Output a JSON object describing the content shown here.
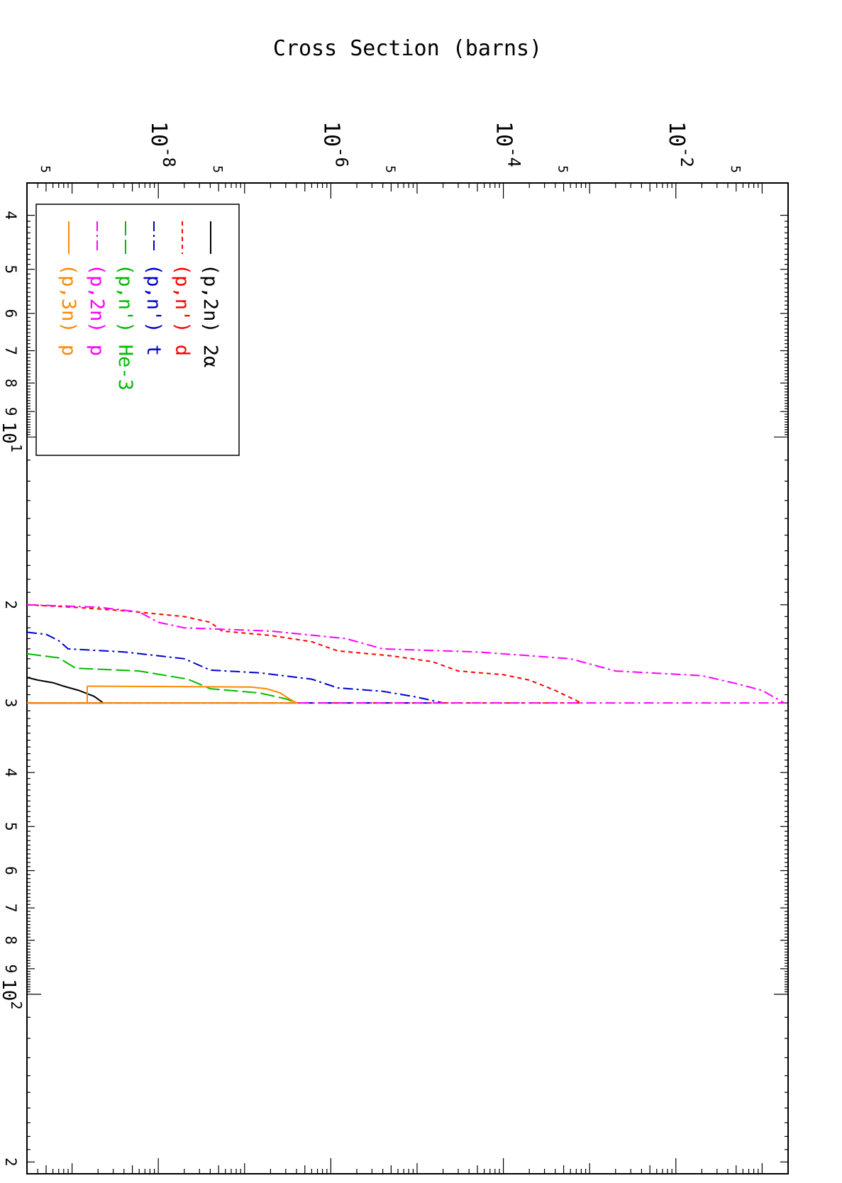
{
  "chart_data": {
    "type": "line",
    "title": "",
    "ylabel": "Cross Section (barns)",
    "xlabel": "",
    "x_scale": "log",
    "y_scale": "log",
    "xlim": [
      3.5,
      210
    ],
    "ylim": [
      3e-10,
      0.2
    ],
    "x_ticks": [
      {
        "value": 4,
        "label": "4"
      },
      {
        "value": 5,
        "label": "5"
      },
      {
        "value": 6,
        "label": "6"
      },
      {
        "value": 7,
        "label": "7"
      },
      {
        "value": 8,
        "label": "8"
      },
      {
        "value": 9,
        "label": "9"
      },
      {
        "value": 10,
        "label": "10",
        "sup": "1"
      },
      {
        "value": 20,
        "label": "2"
      },
      {
        "value": 30,
        "label": "3"
      },
      {
        "value": 40,
        "label": "4"
      },
      {
        "value": 50,
        "label": "5"
      },
      {
        "value": 60,
        "label": "6"
      },
      {
        "value": 70,
        "label": "7"
      },
      {
        "value": 80,
        "label": "8"
      },
      {
        "value": 90,
        "label": "9"
      },
      {
        "value": 100,
        "label": "10",
        "sup": "2"
      },
      {
        "value": 200,
        "label": "2"
      }
    ],
    "y_ticks": [
      {
        "value": 0.05,
        "label": "5"
      },
      {
        "value": 0.01,
        "label": "10",
        "sup": "-2"
      },
      {
        "value": 0.0005,
        "label": "5"
      },
      {
        "value": 0.0001,
        "label": "10",
        "sup": "-4"
      },
      {
        "value": 5e-06,
        "label": "5"
      },
      {
        "value": 1e-06,
        "label": "10",
        "sup": "-6"
      },
      {
        "value": 5e-08,
        "label": "5"
      },
      {
        "value": 1e-08,
        "label": "10",
        "sup": "-8"
      },
      {
        "value": 5e-10,
        "label": "5"
      }
    ],
    "legend_position": "bottom-left",
    "series": [
      {
        "name": "(p,2n) 2α",
        "color": "#000000",
        "dash": "",
        "points": [
          [
            27.0,
            3e-10
          ],
          [
            27.3,
            4e-10
          ],
          [
            27.6,
            6e-10
          ],
          [
            28.0,
            8e-10
          ],
          [
            28.5,
            1.2e-09
          ],
          [
            29.2,
            1.8e-09
          ],
          [
            30.0,
            2.3e-09
          ],
          [
            30.0,
            3e-10
          ]
        ]
      },
      {
        "name": "(p,n') d",
        "color": "#ff0000",
        "dash": "6,5",
        "points": [
          [
            20.0,
            3e-10
          ],
          [
            20.2,
            1e-09
          ],
          [
            20.5,
            4e-09
          ],
          [
            21.0,
            2e-08
          ],
          [
            21.5,
            4e-08
          ],
          [
            22.3,
            5.5e-08
          ],
          [
            22.7,
            2e-07
          ],
          [
            23.3,
            6e-07
          ],
          [
            24.2,
            1.2e-06
          ],
          [
            24.7,
            5e-06
          ],
          [
            25.3,
            1.5e-05
          ],
          [
            26.3,
            3e-05
          ],
          [
            26.7,
            0.0001
          ],
          [
            27.3,
            0.0002
          ],
          [
            28.5,
            0.0004
          ],
          [
            30.0,
            0.0008
          ],
          [
            30.0,
            3e-10
          ]
        ]
      },
      {
        "name": "(p,n') t",
        "color": "#0000cc",
        "dash": "14,5,3,5",
        "points": [
          [
            22.4,
            3e-10
          ],
          [
            22.6,
            5e-10
          ],
          [
            23.2,
            7e-10
          ],
          [
            24.0,
            9e-10
          ],
          [
            24.3,
            4e-09
          ],
          [
            25.0,
            2e-08
          ],
          [
            26.2,
            4e-08
          ],
          [
            26.5,
            1.5e-07
          ],
          [
            27.2,
            6e-07
          ],
          [
            28.2,
            1.2e-06
          ],
          [
            28.6,
            4e-06
          ],
          [
            29.3,
            1e-05
          ],
          [
            30.0,
            2e-05
          ],
          [
            30.0,
            3e-10
          ]
        ]
      },
      {
        "name": "(p,n') He-3",
        "color": "#00bb00",
        "dash": "20,6",
        "points": [
          [
            24.5,
            3e-10
          ],
          [
            24.9,
            7e-10
          ],
          [
            26.0,
            1.1e-09
          ],
          [
            26.3,
            6e-09
          ],
          [
            27.2,
            2.2e-08
          ],
          [
            28.3,
            4e-08
          ],
          [
            28.8,
            1.5e-07
          ],
          [
            29.5,
            3e-07
          ],
          [
            30.0,
            4e-07
          ],
          [
            30.0,
            3e-10
          ]
        ]
      },
      {
        "name": "(p,2n) p",
        "color": "#ff00ff",
        "dash": "14,5,3,5",
        "points": [
          [
            20.0,
            3e-10
          ],
          [
            20.2,
            2e-09
          ],
          [
            20.6,
            6e-09
          ],
          [
            21.5,
            1e-08
          ],
          [
            22.0,
            2e-08
          ],
          [
            22.3,
            2e-07
          ],
          [
            23.0,
            1.5e-06
          ],
          [
            24.0,
            4e-06
          ],
          [
            24.3,
            5e-05
          ],
          [
            25.0,
            0.0006
          ],
          [
            26.3,
            0.002
          ],
          [
            26.8,
            0.02
          ],
          [
            27.7,
            0.05
          ],
          [
            28.5,
            0.1
          ],
          [
            30.0,
            0.18
          ],
          [
            30.0,
            3e-10
          ]
        ]
      },
      {
        "name": "(p,3n) p",
        "color": "#ff8800",
        "dash": "",
        "points": [
          [
            28.0,
            1.5e-09
          ],
          [
            28.1,
            1.2e-07
          ],
          [
            28.3,
            1.8e-07
          ],
          [
            28.8,
            2.6e-07
          ],
          [
            29.5,
            3.3e-07
          ],
          [
            30.0,
            4e-07
          ],
          [
            30.0,
            3e-10
          ],
          [
            30.0,
            1.5e-09
          ],
          [
            28.0,
            1.5e-09
          ]
        ]
      }
    ]
  }
}
